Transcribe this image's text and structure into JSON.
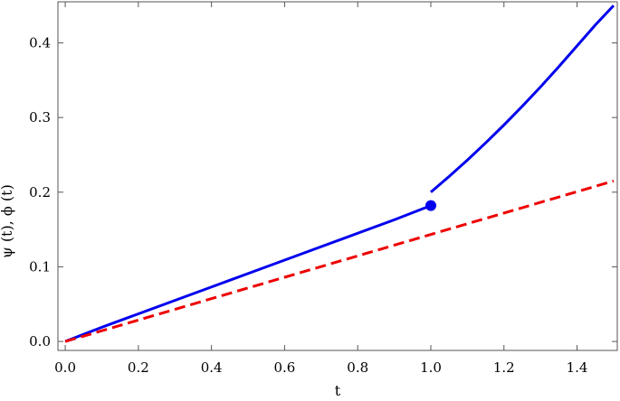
{
  "chart_data": {
    "type": "line",
    "xlabel": "t",
    "ylabel": "ψ  (t), ϕ  (t)",
    "xlim": [
      -0.02,
      1.51
    ],
    "ylim": [
      -0.012,
      0.455
    ],
    "xticks": [
      "0.0",
      "0.2",
      "0.4",
      "0.6",
      "0.8",
      "1.0",
      "1.2",
      "1.4"
    ],
    "yticks": [
      "0.0",
      "0.1",
      "0.2",
      "0.3",
      "0.4"
    ],
    "grid": false,
    "legend": "none",
    "series": [
      {
        "color": "#0000ee",
        "style": "solid",
        "x": [
          0.0,
          0.1,
          0.2,
          0.3,
          0.4,
          0.5,
          0.6,
          0.7,
          0.8,
          0.9,
          1.0
        ],
        "y": [
          0.0,
          0.019,
          0.037,
          0.055,
          0.073,
          0.091,
          0.109,
          0.127,
          0.145,
          0.163,
          0.182
        ]
      },
      {
        "color": "#0000ee",
        "style": "solid",
        "x": [
          1.0,
          1.05,
          1.1,
          1.15,
          1.2,
          1.25,
          1.3,
          1.35,
          1.4,
          1.45,
          1.5
        ],
        "y": [
          0.2,
          0.221,
          0.243,
          0.266,
          0.29,
          0.315,
          0.341,
          0.368,
          0.396,
          0.424,
          0.45
        ]
      },
      {
        "color": "#ee0000",
        "style": "dashed",
        "x": [
          0.0,
          0.3,
          0.6,
          0.9,
          1.2,
          1.5
        ],
        "y": [
          0.0,
          0.043,
          0.086,
          0.129,
          0.172,
          0.215
        ]
      }
    ],
    "markers": [
      {
        "x": 1.0,
        "y": 0.182,
        "color": "#0000ee"
      }
    ]
  }
}
